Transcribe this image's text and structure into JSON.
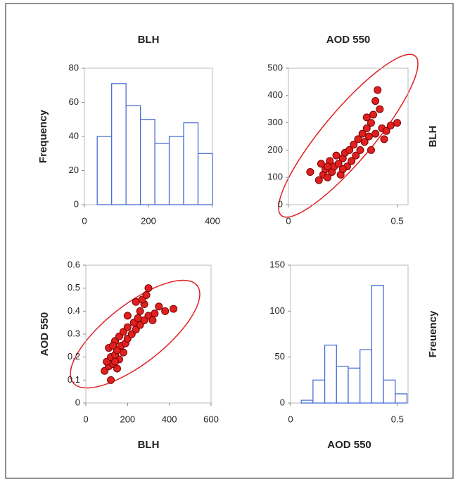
{
  "chart_data": [
    {
      "type": "histogram",
      "title": "BLH",
      "y_label": "Frequency",
      "bins": [
        40,
        85,
        130,
        175,
        220,
        265,
        310,
        355,
        400
      ],
      "values": [
        40,
        71,
        58,
        50,
        36,
        40,
        48,
        30
      ],
      "color": "#4a6fd6",
      "xlim": [
        0,
        400
      ],
      "xticks": [
        0,
        200,
        400
      ],
      "ylim": [
        0,
        80
      ],
      "yticks": [
        0,
        20,
        40,
        60,
        80
      ]
    },
    {
      "type": "scatter",
      "title": "AOD 550",
      "y_label": "BLH",
      "color": "#e02020",
      "x": [
        0.1,
        0.14,
        0.15,
        0.16,
        0.17,
        0.18,
        0.19,
        0.2,
        0.21,
        0.22,
        0.23,
        0.24,
        0.25,
        0.26,
        0.27,
        0.28,
        0.29,
        0.3,
        0.31,
        0.32,
        0.33,
        0.34,
        0.35,
        0.36,
        0.37,
        0.38,
        0.39,
        0.4,
        0.41,
        0.42,
        0.43,
        0.44,
        0.45,
        0.47,
        0.5,
        0.38,
        0.4,
        0.36,
        0.25,
        0.18
      ],
      "values": [
        120,
        90,
        150,
        110,
        130,
        100,
        160,
        120,
        140,
        180,
        150,
        110,
        170,
        190,
        140,
        200,
        160,
        220,
        180,
        240,
        200,
        260,
        230,
        280,
        250,
        300,
        330,
        380,
        420,
        350,
        280,
        240,
        270,
        290,
        300,
        200,
        260,
        320,
        130,
        140
      ],
      "xlim": [
        0,
        0.55
      ],
      "xticks": [
        0,
        0.5
      ],
      "ylim": [
        0,
        500
      ],
      "yticks": [
        0,
        100,
        200,
        300,
        400,
        500
      ]
    },
    {
      "type": "scatter",
      "x_label": "BLH",
      "y_label": "AOD 550",
      "color": "#e02020",
      "x": [
        120,
        90,
        150,
        110,
        130,
        100,
        160,
        120,
        140,
        180,
        150,
        110,
        170,
        190,
        140,
        200,
        160,
        220,
        180,
        240,
        200,
        260,
        230,
        280,
        250,
        300,
        330,
        380,
        420,
        350,
        280,
        240,
        270,
        290,
        300,
        200,
        260,
        320,
        130,
        140
      ],
      "values": [
        0.1,
        0.14,
        0.15,
        0.16,
        0.17,
        0.18,
        0.19,
        0.2,
        0.21,
        0.22,
        0.23,
        0.24,
        0.25,
        0.26,
        0.27,
        0.28,
        0.29,
        0.3,
        0.31,
        0.32,
        0.33,
        0.34,
        0.35,
        0.36,
        0.37,
        0.38,
        0.39,
        0.4,
        0.41,
        0.42,
        0.43,
        0.44,
        0.45,
        0.47,
        0.5,
        0.38,
        0.4,
        0.36,
        0.25,
        0.18
      ],
      "xlim": [
        0,
        600
      ],
      "xticks": [
        0,
        200,
        400,
        600
      ],
      "ylim": [
        0,
        0.6
      ],
      "yticks": [
        0,
        0.1,
        0.2,
        0.3,
        0.4,
        0.5,
        0.6
      ]
    },
    {
      "type": "histogram",
      "x_label": "AOD 550",
      "y_label": "Freuency",
      "bins": [
        0.05,
        0.105,
        0.16,
        0.215,
        0.27,
        0.325,
        0.38,
        0.435,
        0.49,
        0.545
      ],
      "values": [
        3,
        25,
        63,
        40,
        38,
        58,
        128,
        25,
        10
      ],
      "color": "#4a6fd6",
      "xlim": [
        0,
        0.55
      ],
      "xticks": [
        0,
        0.5
      ],
      "ylim": [
        0,
        150
      ],
      "yticks": [
        0,
        50,
        100,
        150
      ]
    }
  ]
}
